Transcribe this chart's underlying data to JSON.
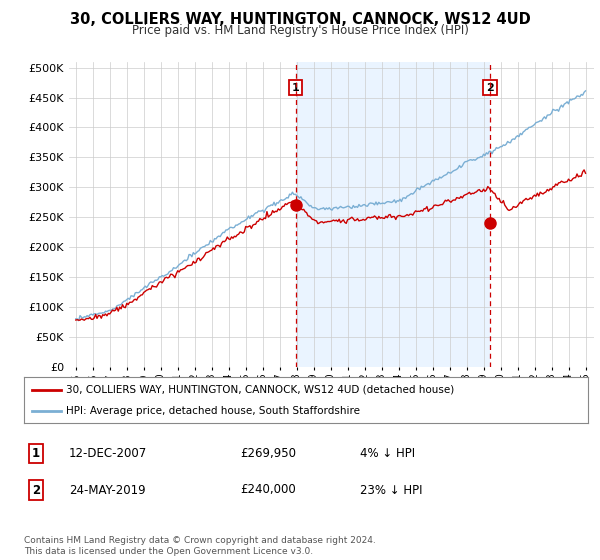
{
  "title": "30, COLLIERS WAY, HUNTINGTON, CANNOCK, WS12 4UD",
  "subtitle": "Price paid vs. HM Land Registry's House Price Index (HPI)",
  "ylabel_ticks": [
    "£0",
    "£50K",
    "£100K",
    "£150K",
    "£200K",
    "£250K",
    "£300K",
    "£350K",
    "£400K",
    "£450K",
    "£500K"
  ],
  "ytick_values": [
    0,
    50000,
    100000,
    150000,
    200000,
    250000,
    300000,
    350000,
    400000,
    450000,
    500000
  ],
  "ylim": [
    0,
    510000
  ],
  "sale1_x": 2007.95,
  "sale1_y": 269950,
  "sale2_x": 2019.38,
  "sale2_y": 240000,
  "legend_line1": "30, COLLIERS WAY, HUNTINGTON, CANNOCK, WS12 4UD (detached house)",
  "legend_line2": "HPI: Average price, detached house, South Staffordshire",
  "table_rows": [
    {
      "num": "1",
      "date": "12-DEC-2007",
      "price": "£269,950",
      "pct": "4% ↓ HPI"
    },
    {
      "num": "2",
      "date": "24-MAY-2019",
      "price": "£240,000",
      "pct": "23% ↓ HPI"
    }
  ],
  "footer": "Contains HM Land Registry data © Crown copyright and database right 2024.\nThis data is licensed under the Open Government Licence v3.0.",
  "line_color_sold": "#cc0000",
  "line_color_hpi": "#7bafd4",
  "vline_color": "#cc0000",
  "shade_color": "#ddeeff",
  "background_color": "#ffffff",
  "grid_color": "#cccccc",
  "xlim_start": 1994.6,
  "xlim_end": 2025.5
}
